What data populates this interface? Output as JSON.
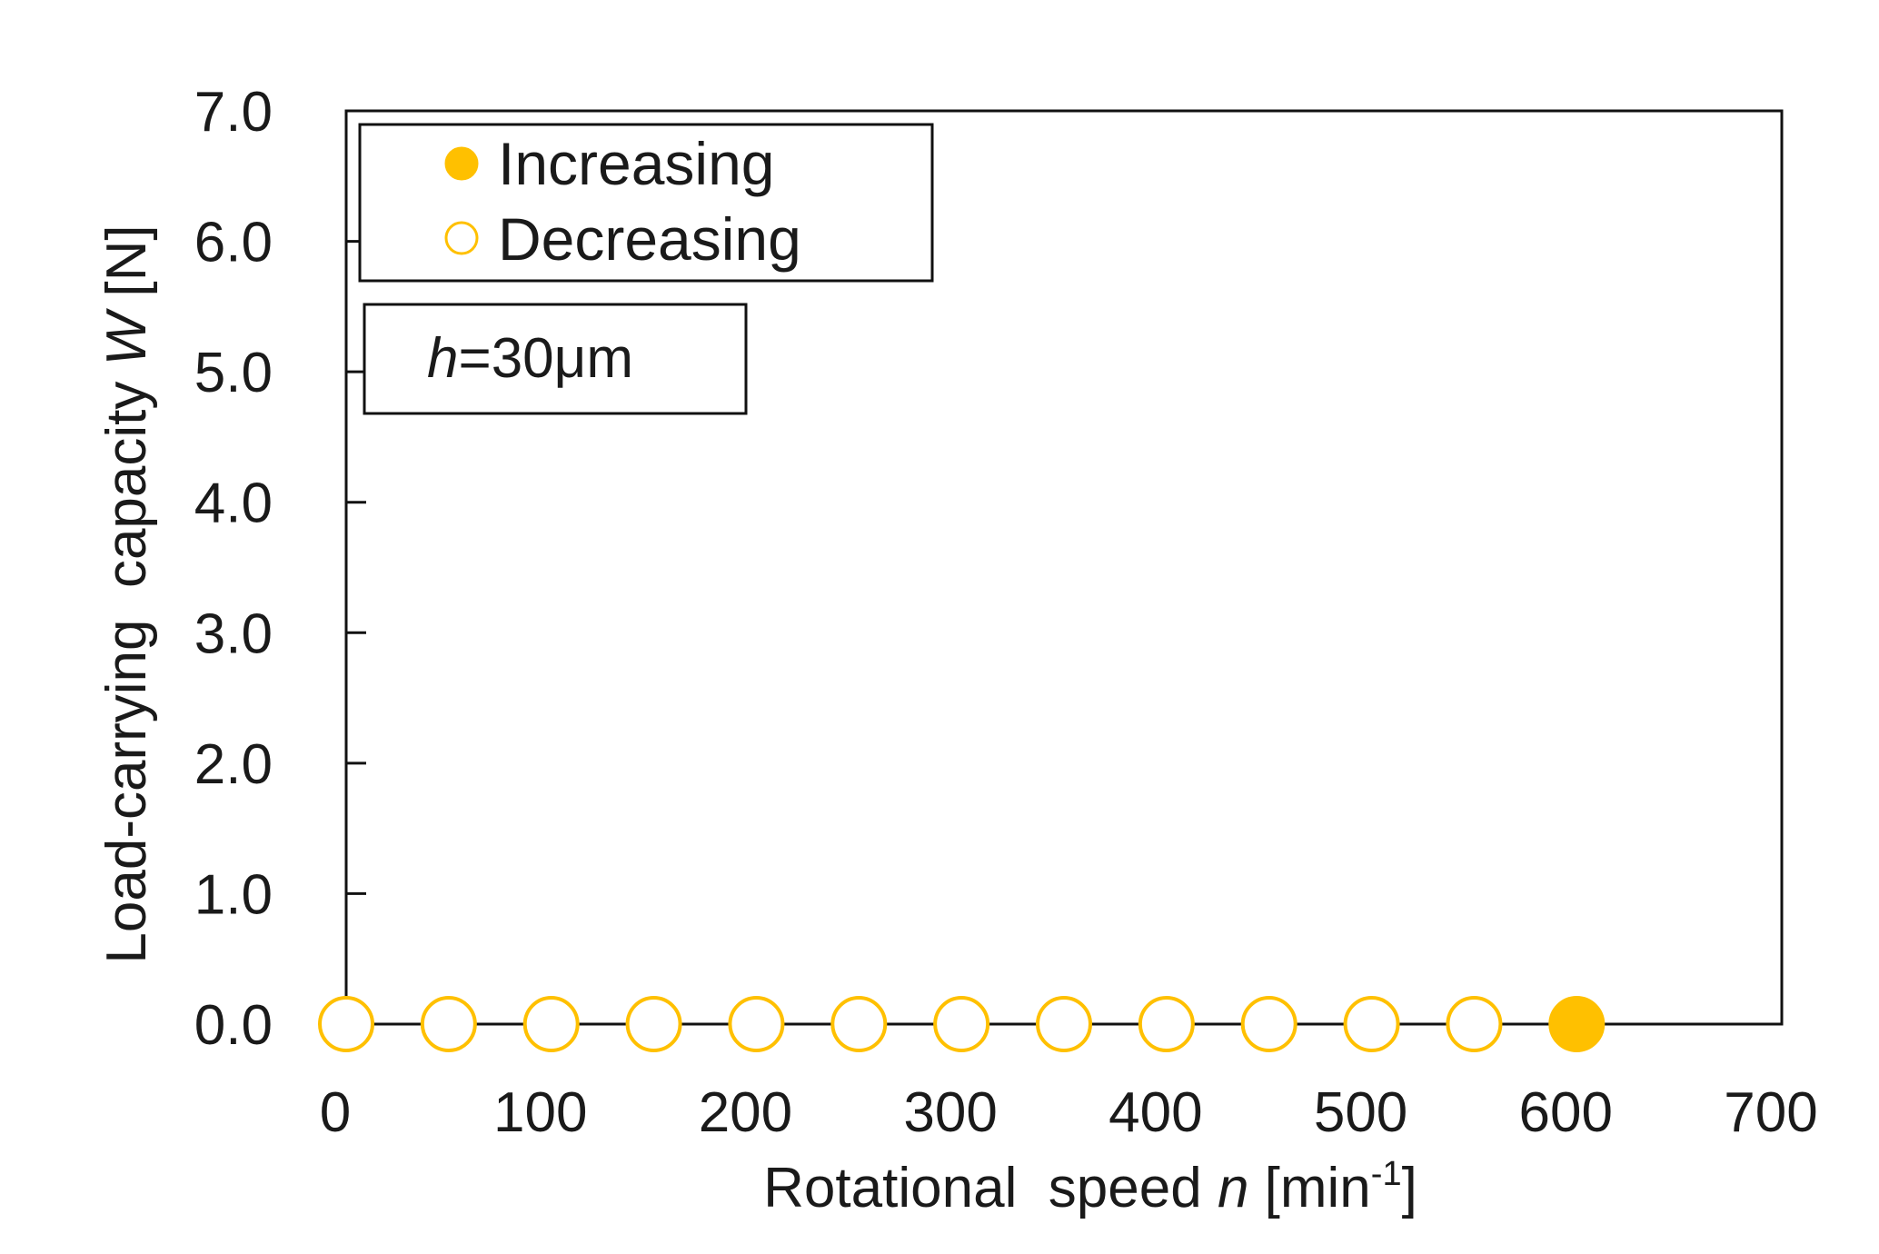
{
  "chart_data": {
    "type": "scatter",
    "title": "",
    "xlabel": {
      "text": "Rotational  speed ",
      "var": "n",
      "unit_open": " [min",
      "unit_sup": "-1",
      "unit_close": "]"
    },
    "ylabel": {
      "text": "Load-carrying  capacity ",
      "var": "W",
      "unit": " [N]"
    },
    "xlim": [
      0,
      700
    ],
    "ylim": [
      0,
      7
    ],
    "xticks": [
      0,
      100,
      200,
      300,
      400,
      500,
      600,
      700
    ],
    "xtick_labels": [
      "0",
      "100",
      "200",
      "300",
      "400",
      "500",
      "600",
      "700"
    ],
    "yticks": [
      0,
      1,
      2,
      3,
      4,
      5,
      6,
      7
    ],
    "ytick_labels": [
      "0.0",
      "1.0",
      "2.0",
      "3.0",
      "4.0",
      "5.0",
      "6.0",
      "7.0"
    ],
    "grid": false,
    "legend_position": "top-left",
    "series": [
      {
        "name": "Increasing",
        "marker": "filled-circle",
        "color": "#FFC000",
        "x": [
          600
        ],
        "y": [
          0.0
        ]
      },
      {
        "name": "Decreasing",
        "marker": "open-circle",
        "color": "#FFC000",
        "x": [
          0,
          50,
          100,
          150,
          200,
          250,
          300,
          350,
          400,
          450,
          500,
          550
        ],
        "y": [
          0.0,
          0.0,
          0.0,
          0.0,
          0.0,
          0.0,
          0.0,
          0.0,
          0.0,
          0.0,
          0.0,
          0.0
        ]
      }
    ],
    "annotation": {
      "var": "h",
      "text": "=30μm"
    }
  }
}
